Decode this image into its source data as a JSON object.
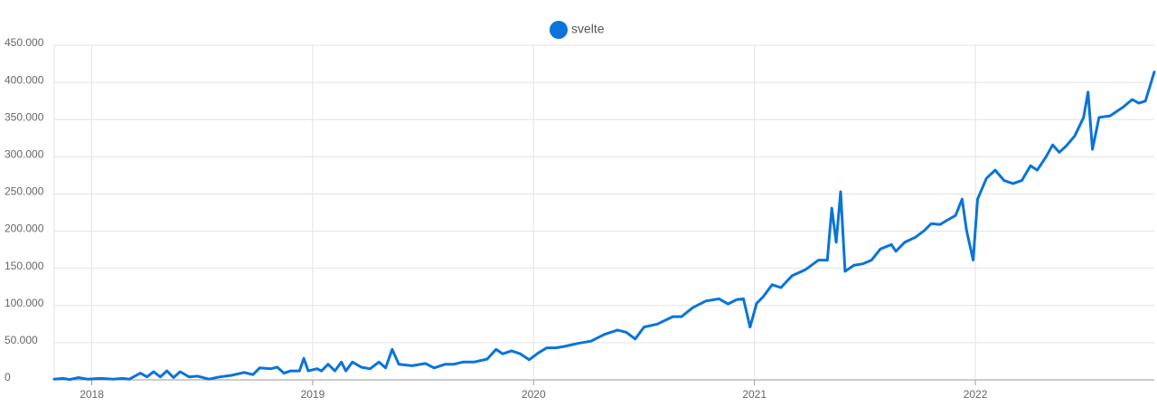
{
  "chart_data": {
    "type": "line",
    "grid": true,
    "xlim": [
      2017.83,
      2022.81
    ],
    "xticks": [
      2018,
      2019,
      2020,
      2021,
      2022
    ],
    "ylim": [
      0,
      450000
    ],
    "yticks": [
      {
        "value": 0,
        "label": "0"
      },
      {
        "value": 50000,
        "label": "50.000"
      },
      {
        "value": 100000,
        "label": "100.000"
      },
      {
        "value": 150000,
        "label": "150.000"
      },
      {
        "value": 200000,
        "label": "200.000"
      },
      {
        "value": 250000,
        "label": "250.000"
      },
      {
        "value": 300000,
        "label": "300.000"
      },
      {
        "value": 350000,
        "label": "350.000"
      },
      {
        "value": 400000,
        "label": "400.000"
      },
      {
        "value": 450000,
        "label": "450.000"
      }
    ],
    "x": [
      2017.83,
      2017.87,
      2017.9,
      2017.94,
      2017.98,
      2018.04,
      2018.1,
      2018.14,
      2018.17,
      2018.22,
      2018.25,
      2018.28,
      2018.31,
      2018.34,
      2018.37,
      2018.4,
      2018.44,
      2018.48,
      2018.53,
      2018.58,
      2018.63,
      2018.69,
      2018.73,
      2018.76,
      2018.81,
      2018.84,
      2018.87,
      2018.9,
      2018.94,
      2018.96,
      2018.98,
      2019.02,
      2019.04,
      2019.07,
      2019.1,
      2019.13,
      2019.15,
      2019.18,
      2019.22,
      2019.26,
      2019.3,
      2019.33,
      2019.36,
      2019.39,
      2019.45,
      2019.51,
      2019.55,
      2019.6,
      2019.64,
      2019.68,
      2019.73,
      2019.79,
      2019.83,
      2019.86,
      2019.9,
      2019.94,
      2019.98,
      2020.02,
      2020.06,
      2020.1,
      2020.14,
      2020.2,
      2020.26,
      2020.32,
      2020.38,
      2020.42,
      2020.46,
      2020.5,
      2020.56,
      2020.63,
      2020.67,
      2020.72,
      2020.78,
      2020.84,
      2020.88,
      2020.92,
      2020.95,
      2020.98,
      2021.01,
      2021.04,
      2021.08,
      2021.12,
      2021.17,
      2021.23,
      2021.29,
      2021.33,
      2021.35,
      2021.37,
      2021.39,
      2021.41,
      2021.45,
      2021.49,
      2021.53,
      2021.57,
      2021.62,
      2021.64,
      2021.68,
      2021.73,
      2021.77,
      2021.8,
      2021.84,
      2021.88,
      2021.91,
      2021.94,
      2021.96,
      2021.99,
      2022.01,
      2022.05,
      2022.09,
      2022.13,
      2022.17,
      2022.21,
      2022.25,
      2022.28,
      2022.32,
      2022.35,
      2022.38,
      2022.41,
      2022.45,
      2022.49,
      2022.51,
      2022.53,
      2022.56,
      2022.61,
      2022.67,
      2022.71,
      2022.74,
      2022.77,
      2022.81
    ],
    "series": [
      {
        "name": "svelte",
        "color": "#0a74da",
        "values": [
          1000,
          2000,
          500,
          3000,
          1000,
          2000,
          1000,
          2000,
          1000,
          9000,
          4000,
          11000,
          4000,
          12000,
          3000,
          11000,
          4000,
          5000,
          1000,
          4000,
          6000,
          10000,
          7000,
          16000,
          15000,
          17000,
          9000,
          12000,
          12000,
          29000,
          12000,
          15000,
          12000,
          21000,
          12000,
          24000,
          12000,
          24000,
          17000,
          15000,
          24000,
          16000,
          41000,
          21000,
          19000,
          22000,
          16000,
          21000,
          21000,
          24000,
          24000,
          28000,
          41000,
          35000,
          39000,
          35000,
          27000,
          36000,
          43000,
          43000,
          45000,
          49000,
          52000,
          61000,
          67000,
          64000,
          55000,
          71000,
          75000,
          85000,
          85000,
          97000,
          106000,
          109000,
          102000,
          108000,
          109000,
          71000,
          103000,
          112000,
          128000,
          124000,
          140000,
          148000,
          161000,
          161000,
          231000,
          185000,
          253000,
          146000,
          154000,
          156000,
          161000,
          176000,
          182000,
          173000,
          185000,
          192000,
          201000,
          210000,
          209000,
          216000,
          221000,
          243000,
          201000,
          161000,
          243000,
          271000,
          282000,
          268000,
          264000,
          268000,
          288000,
          282000,
          300000,
          316000,
          306000,
          314000,
          328000,
          353000,
          387000,
          310000,
          353000,
          355000,
          367000,
          377000,
          372000,
          375000,
          414000
        ]
      }
    ]
  }
}
